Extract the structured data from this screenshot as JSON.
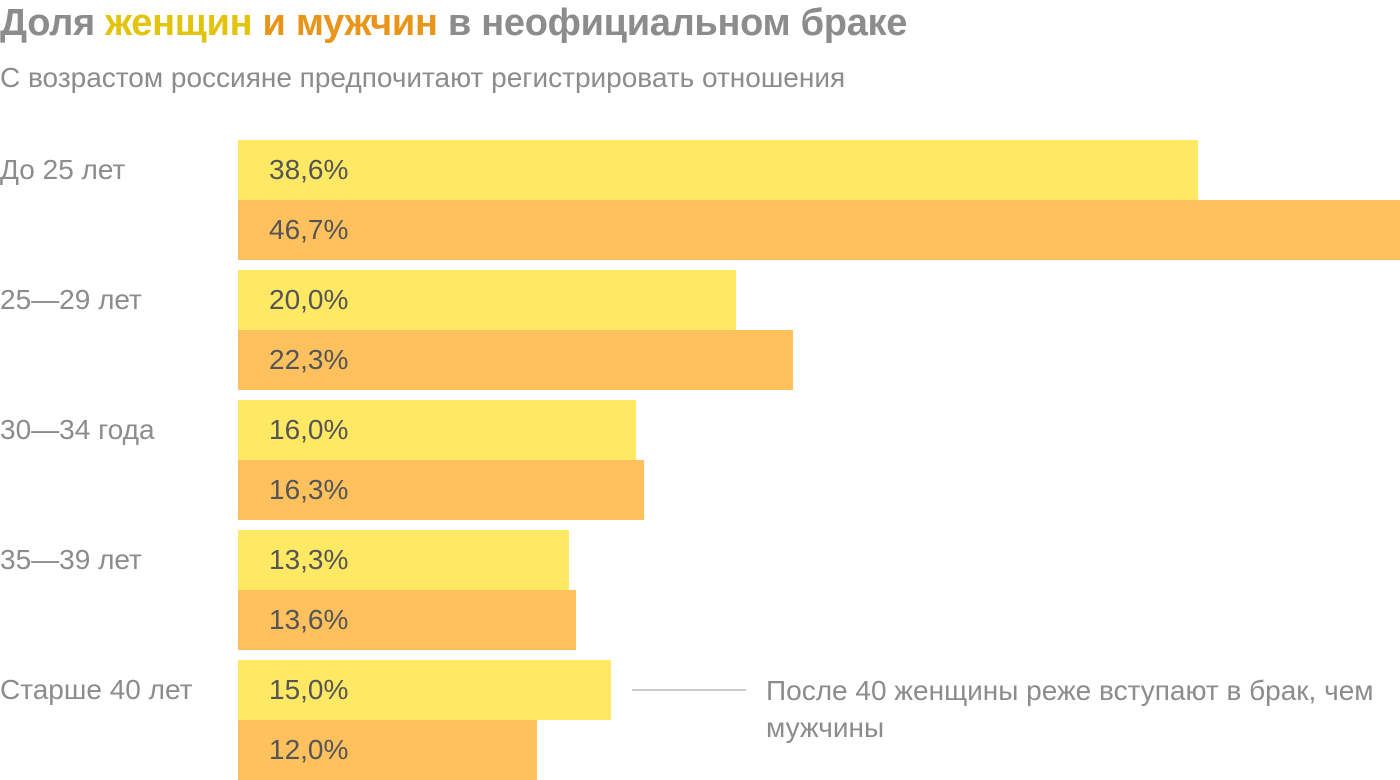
{
  "title": {
    "part1": "Доля ",
    "women": "женщин",
    "part2": " ",
    "men": "и мужчин",
    "part3": " в неофициальном браке"
  },
  "subtitle": "С возрастом россияне предпочитают регистрировать отношения",
  "annotation": "После 40 женщины реже вступают в брак, чем мужчины",
  "colors": {
    "women": "#ffe964",
    "men": "#ffc15e",
    "title_women": "#e3c40d",
    "title_men": "#e8951a",
    "text_muted": "#8c8c8c"
  },
  "chart_data": {
    "type": "bar",
    "orientation": "horizontal",
    "title": "Доля женщин и мужчин в неофициальном браке",
    "subtitle": "С возрастом россияне предпочитают регистрировать отношения",
    "categories": [
      "До 25 лет",
      "25—29 лет",
      "30—34 года",
      "35—39 лет",
      "Старше 40 лет"
    ],
    "series": [
      {
        "name": "женщин",
        "values": [
          38.6,
          20.0,
          16.0,
          13.3,
          15.0
        ],
        "labels": [
          "38,6%",
          "20,0%",
          "16,0%",
          "13,3%",
          "15,0%"
        ]
      },
      {
        "name": "и мужчин",
        "values": [
          46.7,
          22.3,
          16.3,
          13.6,
          12.0
        ],
        "labels": [
          "46,7%",
          "22,3%",
          "16,3%",
          "13,6%",
          "12,0%"
        ]
      }
    ],
    "xlim": [
      0,
      46.7
    ],
    "grid": false,
    "legend": "in title",
    "unit": "%"
  }
}
